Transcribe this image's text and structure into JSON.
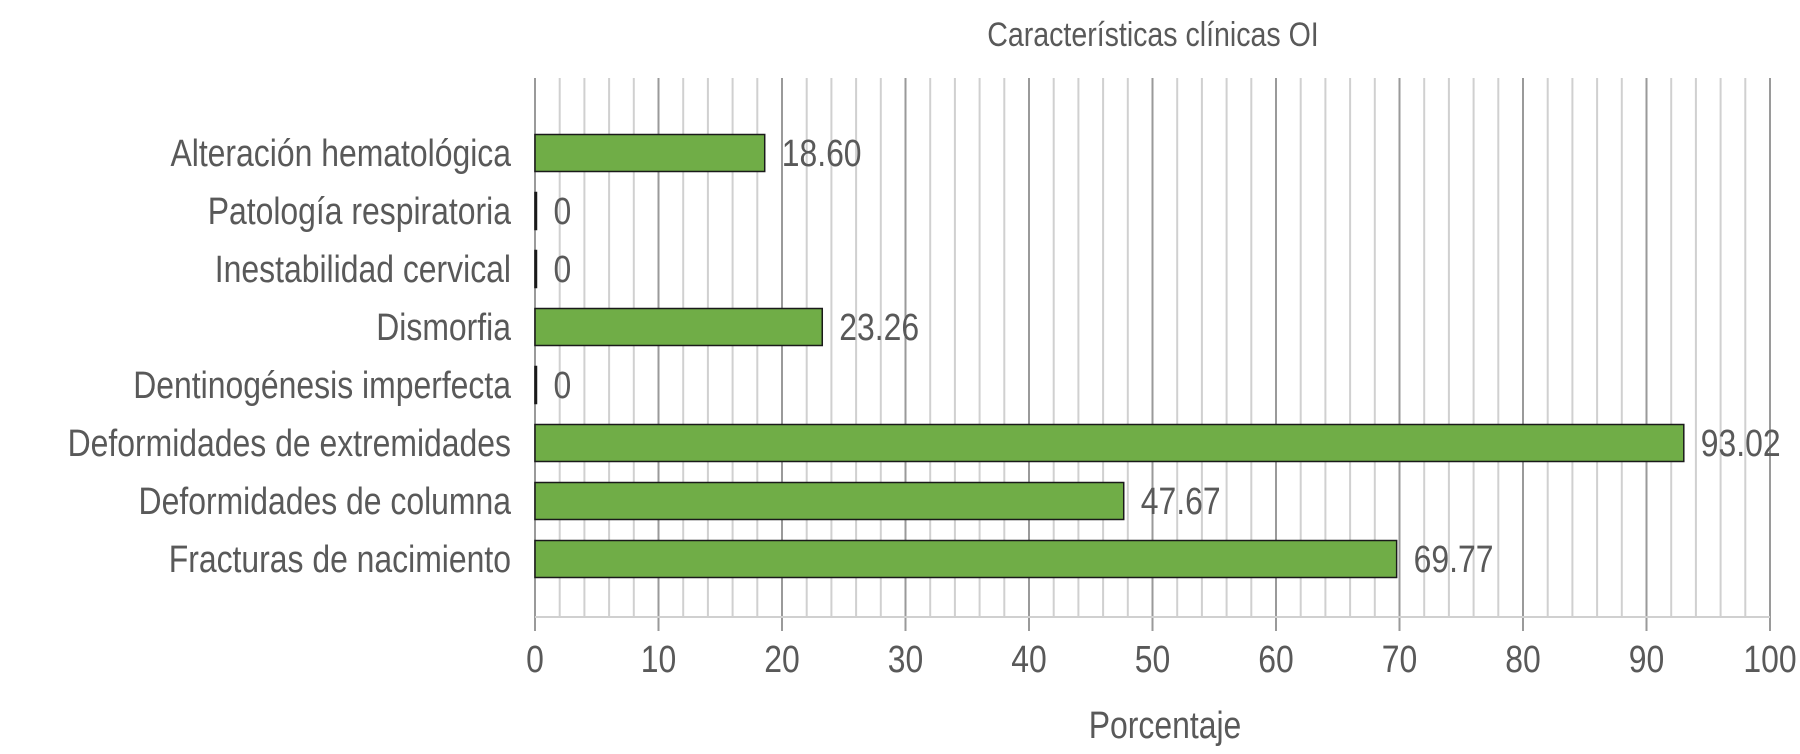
{
  "chart_data": {
    "type": "bar",
    "orientation": "horizontal",
    "title": "Características clínicas OI",
    "xlabel": "Porcentaje",
    "ylabel": "",
    "xlim": [
      0,
      100
    ],
    "xticks": [
      0,
      10,
      20,
      30,
      40,
      50,
      60,
      70,
      80,
      90,
      100
    ],
    "minor_grid_step": 2,
    "grid": true,
    "categories": [
      "Alteración hematológica",
      "Patología respiratoria",
      "Inestabilidad cervical",
      "Dismorfia",
      "Dentinogénesis imperfecta",
      "Deformidades de extremidades",
      "Deformidades de columna",
      "Fracturas de nacimiento"
    ],
    "values": [
      18.6,
      0,
      0,
      23.26,
      0,
      93.02,
      47.67,
      69.77
    ],
    "value_labels": [
      "18.60",
      "0",
      "0",
      "23.26",
      "0",
      "93.02",
      "47.67",
      "69.77"
    ],
    "colors": {
      "bar": "#70ad47",
      "bar_stroke": "#1a1a1a",
      "text": "#595959",
      "major_grid": "#9a9a9a",
      "minor_grid": "#d0d0d0"
    }
  }
}
